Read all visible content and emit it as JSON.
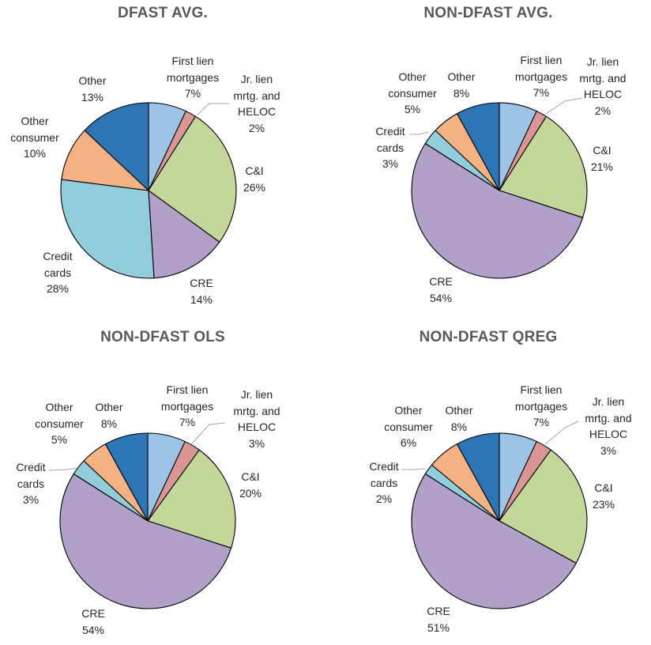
{
  "chart_data": [
    {
      "type": "pie",
      "title": "DFAST AVG.",
      "categories": [
        "First lien mortgages",
        "Jr. lien mrtg. and HELOC",
        "C&I",
        "CRE",
        "Credit cards",
        "Other consumer",
        "Other"
      ],
      "values": [
        7,
        2,
        26,
        14,
        28,
        10,
        13
      ],
      "value_labels": [
        "7%",
        "2%",
        "26%",
        "14%",
        "28%",
        "10%",
        "13%"
      ],
      "label_lines": [
        [
          "First lien",
          "mortgages"
        ],
        [
          "Jr. lien",
          "mrtg. and",
          "HELOC"
        ],
        [
          "C&I"
        ],
        [
          "CRE"
        ],
        [
          "Credit",
          "cards"
        ],
        [
          "Other",
          "consumer"
        ],
        [
          "Other"
        ]
      ],
      "unit": "%"
    },
    {
      "type": "pie",
      "title": "NON-DFAST AVG.",
      "categories": [
        "First lien mortgages",
        "Jr. lien mrtg. and HELOC",
        "C&I",
        "CRE",
        "Credit cards",
        "Other consumer",
        "Other"
      ],
      "values": [
        7,
        2,
        21,
        54,
        3,
        5,
        8
      ],
      "value_labels": [
        "7%",
        "2%",
        "21%",
        "54%",
        "3%",
        "5%",
        "8%"
      ],
      "label_lines": [
        [
          "First lien",
          "mortgages"
        ],
        [
          "Jr. lien",
          "mrtg. and",
          "HELOC"
        ],
        [
          "C&I"
        ],
        [
          "CRE"
        ],
        [
          "Credit",
          "cards"
        ],
        [
          "Other",
          "consumer"
        ],
        [
          "Other"
        ]
      ],
      "unit": "%"
    },
    {
      "type": "pie",
      "title": "NON-DFAST OLS",
      "categories": [
        "First lien mortgages",
        "Jr. lien mrtg. and HELOC",
        "C&I",
        "CRE",
        "Credit cards",
        "Other consumer",
        "Other"
      ],
      "values": [
        7,
        3,
        20,
        54,
        3,
        5,
        8
      ],
      "value_labels": [
        "7%",
        "3%",
        "20%",
        "54%",
        "3%",
        "5%",
        "8%"
      ],
      "label_lines": [
        [
          "First lien",
          "mortgages"
        ],
        [
          "Jr. lien",
          "mrtg. and",
          "HELOC"
        ],
        [
          "C&I"
        ],
        [
          "CRE"
        ],
        [
          "Credit",
          "cards"
        ],
        [
          "Other",
          "consumer"
        ],
        [
          "Other"
        ]
      ],
      "unit": "%"
    },
    {
      "type": "pie",
      "title": "NON-DFAST QREG",
      "categories": [
        "First lien mortgages",
        "Jr. lien mrtg. and HELOC",
        "C&I",
        "CRE",
        "Credit cards",
        "Other consumer",
        "Other"
      ],
      "values": [
        7,
        3,
        23,
        51,
        2,
        6,
        8
      ],
      "value_labels": [
        "7%",
        "3%",
        "23%",
        "51%",
        "2%",
        "6%",
        "8%"
      ],
      "label_lines": [
        [
          "First lien",
          "mortgages"
        ],
        [
          "Jr. lien",
          "mrtg. and",
          "HELOC"
        ],
        [
          "C&I"
        ],
        [
          "CRE"
        ],
        [
          "Credit",
          "cards"
        ],
        [
          "Other",
          "consumer"
        ],
        [
          "Other"
        ]
      ],
      "unit": "%"
    }
  ],
  "slice_colors": [
    "#9DC3E6",
    "#DA9694",
    "#C4D79B",
    "#B1A0C7",
    "#92CDDC",
    "#F4B183",
    "#2E75B6"
  ],
  "title_color": "#595959",
  "label_color": "#262626"
}
